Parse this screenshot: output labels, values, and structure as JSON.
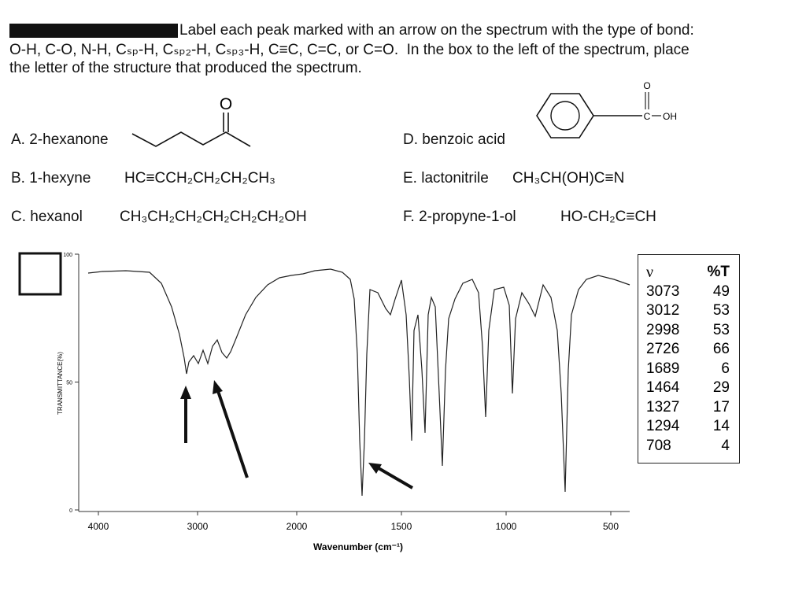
{
  "header": {
    "lines": [
      "Label each peak marked with an arrow on the spectrum with the type of bond:",
      "O-H, C-O, N-H, Cₛₚ-H, Cₛₚ₂-H, Cₛₚ₃-H, C≡C, C=C, or C=O.  In the box to the left of the spectrum, place",
      "the letter of the structure that produced the spectrum."
    ]
  },
  "compounds": [
    {
      "letter": "A.",
      "name": "2-hexanone"
    },
    {
      "letter": "B.",
      "name": "1-hexyne",
      "formula": "HC≡CCH₂CH₂CH₂CH₃"
    },
    {
      "letter": "C.",
      "name": "hexanol",
      "formula": "CH₃CH₂CH₂CH₂CH₂CH₂OH"
    },
    {
      "letter": "D.",
      "name": "benzoic acid"
    },
    {
      "letter": "E.",
      "name": "lactonitrile",
      "formula": "CH₃CH(OH)C≡N"
    },
    {
      "letter": "F.",
      "name": "2-propyne-1-ol",
      "formula": "HO-CH₂C≡CH"
    }
  ],
  "structures": {
    "ketone_oxygen": "O",
    "acid_oxygen": "O",
    "acid_carbon": "C",
    "acid_hydroxyl": "OH"
  },
  "spectrum": {
    "y_label": "TRANSMITTANCE(%)",
    "x_label": "Wavenumber (cm⁻¹)",
    "yticks": [
      0,
      50,
      100
    ],
    "xticks": [
      4000,
      3000,
      2000,
      1500,
      1000,
      500
    ],
    "table": {
      "headers": [
        "ν",
        "%T"
      ],
      "rows": [
        [
          3073,
          49
        ],
        [
          3012,
          53
        ],
        [
          2998,
          53
        ],
        [
          2726,
          66
        ],
        [
          1689,
          6
        ],
        [
          1464,
          29
        ],
        [
          1327,
          17
        ],
        [
          1294,
          14
        ],
        [
          708,
          4
        ]
      ]
    }
  }
}
